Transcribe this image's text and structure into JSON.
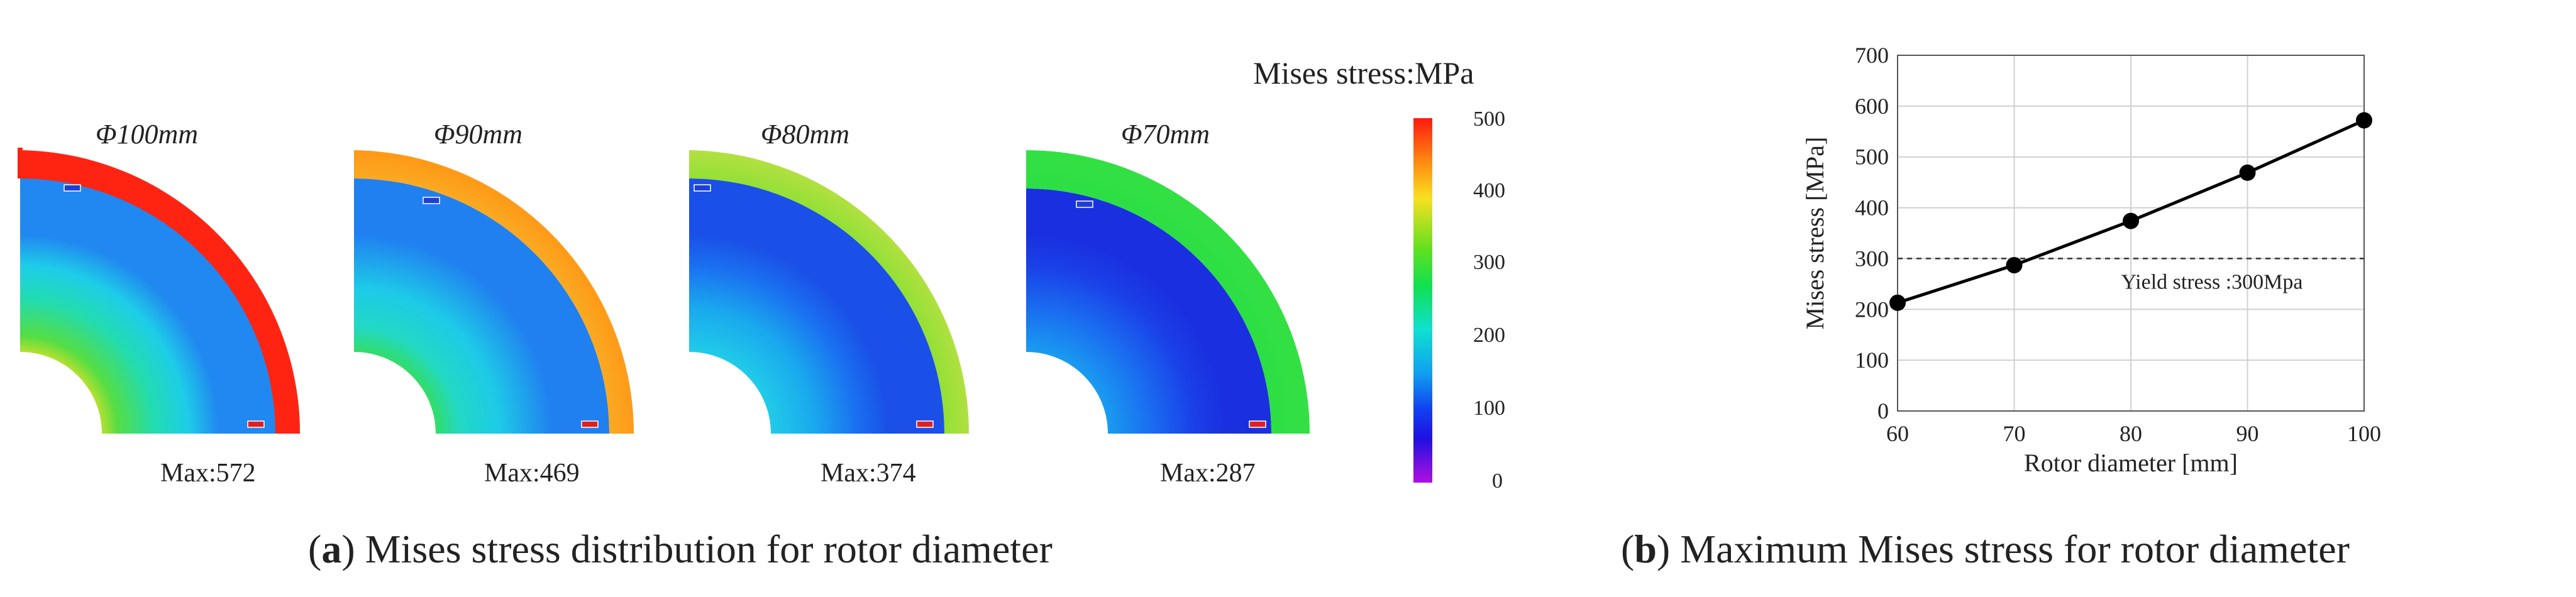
{
  "panel_a": {
    "colorbar_title": "Mises stress:MPa",
    "colorbar_ticks": [
      "500",
      "400",
      "300",
      "200",
      "100",
      "0"
    ],
    "diameters": [
      "Φ100mm",
      "Φ90mm",
      "Φ80mm",
      "Φ70mm"
    ],
    "max_labels": [
      "Max:572",
      "Max:469",
      "Max:374",
      "Max:287"
    ],
    "caption_letter": "a",
    "caption_text": " Mises stress distribution for rotor diameter"
  },
  "panel_b": {
    "caption_letter": "b",
    "caption_text": " Maximum Mises stress for rotor diameter",
    "annotation": "Yield stress :300Mpa"
  },
  "chart_data": {
    "type": "line",
    "title": "",
    "xlabel": "Rotor diameter [mm]",
    "ylabel": "Mises stress [MPa]",
    "x": [
      60,
      70,
      80,
      90,
      100
    ],
    "xticks": [
      "60",
      "70",
      "80",
      "90",
      "100"
    ],
    "yticks": [
      "0",
      "100",
      "200",
      "300",
      "400",
      "500",
      "600",
      "700"
    ],
    "xlim": [
      60,
      100
    ],
    "ylim": [
      0,
      700
    ],
    "grid": true,
    "series": [
      {
        "values": [
          213,
          287,
          374,
          469,
          572
        ],
        "color": "#000000"
      }
    ],
    "reference_line": {
      "y": 300,
      "style": "dashed"
    }
  }
}
